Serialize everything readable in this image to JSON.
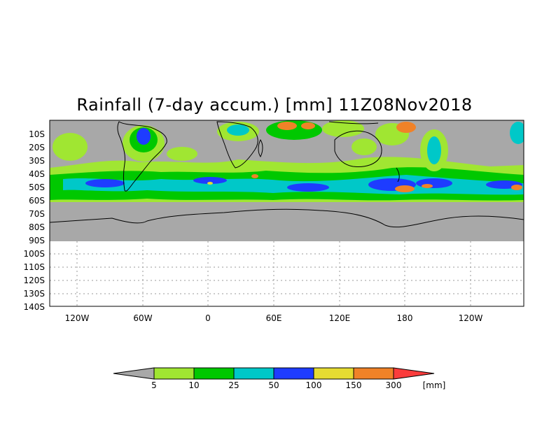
{
  "title": "Rainfall (7-day accum.) [mm] 11Z08Nov2018",
  "map": {
    "lat_labels": [
      "10S",
      "20S",
      "30S",
      "40S",
      "50S",
      "60S",
      "70S",
      "80S",
      "90S",
      "100S",
      "110S",
      "120S",
      "130S",
      "140S"
    ],
    "lon_labels": [
      "120W",
      "60W",
      "0",
      "60E",
      "120E",
      "180",
      "120W"
    ],
    "colors": {
      "no_rain": "#a8a8a8",
      "land_outline": "#000000",
      "grid": "#999999"
    }
  },
  "colorbar": {
    "unit": "[mm]",
    "thresholds": [
      "5",
      "10",
      "25",
      "50",
      "100",
      "150",
      "300"
    ],
    "colors": [
      "#a8a8a8",
      "#a0e632",
      "#00c800",
      "#00c8c8",
      "#1e3cff",
      "#e6dc32",
      "#f08228",
      "#fa3c3c"
    ]
  }
}
